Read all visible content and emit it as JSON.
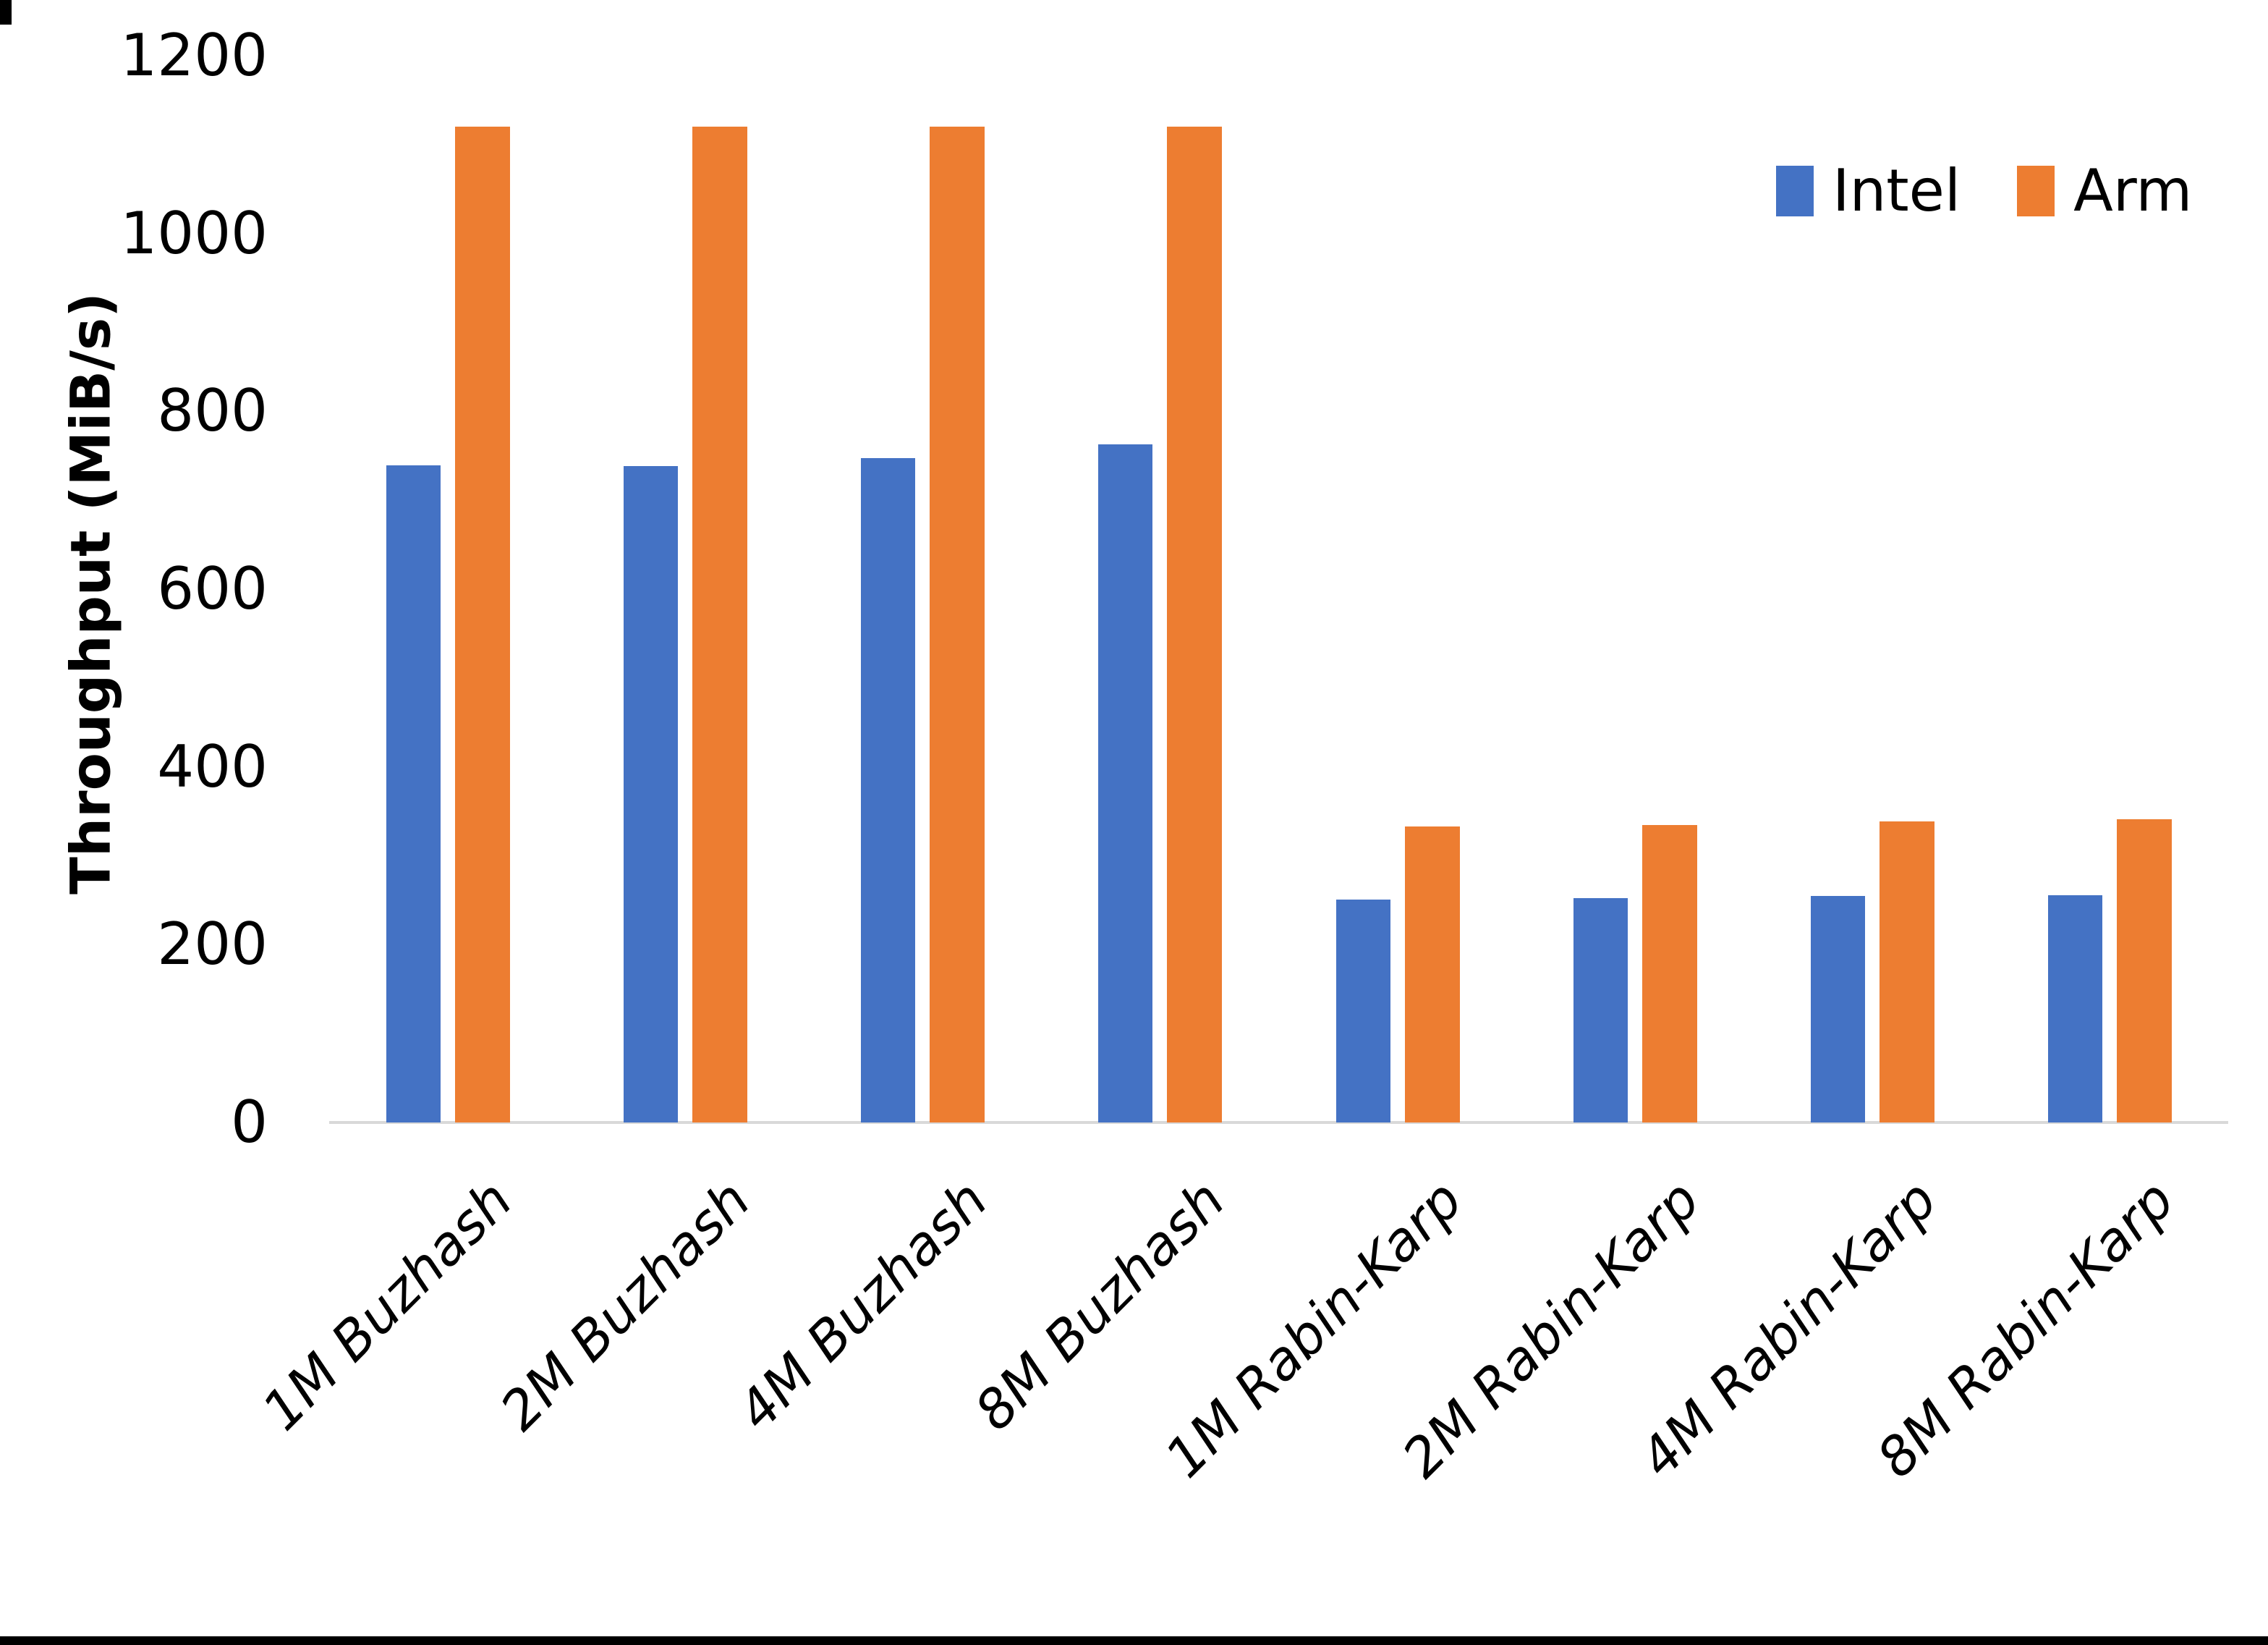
{
  "chart_data": {
    "type": "bar",
    "title": "",
    "xlabel": "",
    "ylabel": "Throughput (MiB/s)",
    "ylim": [
      0,
      1200
    ],
    "yticks": [
      0,
      200,
      400,
      600,
      800,
      1000,
      1200
    ],
    "grid": false,
    "legend_position": "top-right",
    "categories": [
      "1M Buzhash",
      "2M Buzhash",
      "4M Buzhash",
      "8M Buzhash",
      "1M Rabin-Karp",
      "2M Rabin-Karp",
      "4M Rabin-Karp",
      "8M Rabin-Karp"
    ],
    "series": [
      {
        "name": "Intel",
        "color": "#4472C4",
        "values": [
          739,
          738,
          747,
          763,
          251,
          252,
          255,
          256
        ]
      },
      {
        "name": "Arm",
        "color": "#ED7D31",
        "values": [
          1120,
          1120,
          1120,
          1120,
          333,
          335,
          339,
          341
        ]
      }
    ]
  },
  "colors": {
    "background": "#FFFFFF",
    "axis_line": "#D9D9D9",
    "text": "#000000",
    "bottom_edge": "#000000"
  }
}
